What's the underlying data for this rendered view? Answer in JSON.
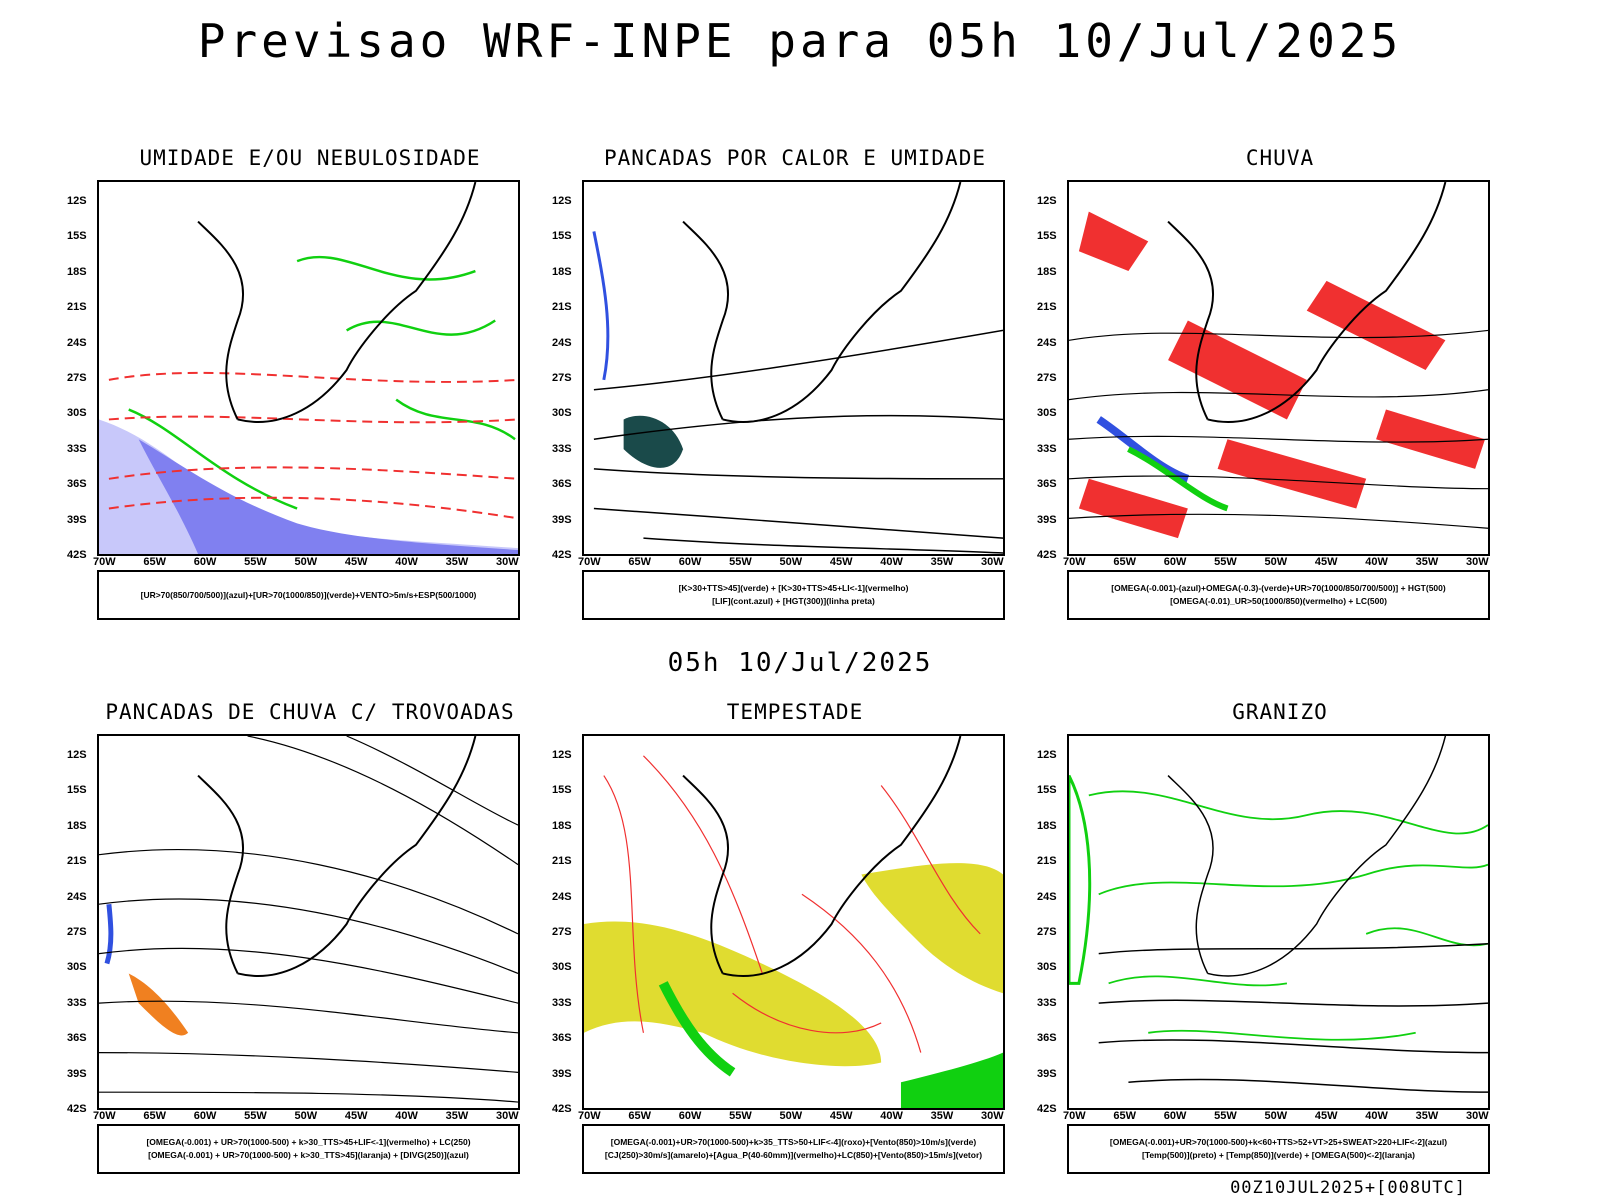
{
  "header": {
    "title": "Previsao WRF-INPE  para 05h 10/Jul/2025",
    "subtitle": "05h 10/Jul/2025",
    "footer": "00Z10JUL2025+[008UTC]"
  },
  "axes": {
    "lat_labels": [
      "12S",
      "15S",
      "18S",
      "21S",
      "24S",
      "27S",
      "30S",
      "33S",
      "36S",
      "39S",
      "42S"
    ],
    "lon_labels": [
      "70W",
      "65W",
      "60W",
      "55W",
      "50W",
      "45W",
      "40W",
      "35W",
      "30W"
    ]
  },
  "colors": {
    "blue": "#3050e0",
    "light_blue": "#a8a8f8",
    "green": "#10d010",
    "red": "#f03030",
    "orange": "#f08020",
    "yellow": "#e0dc30",
    "dark_teal": "#1a4a4a"
  },
  "panels": [
    {
      "id": "umidade",
      "title": "UMIDADE E/OU NEBULOSIDADE",
      "legend": [
        "[UR>70(850/700/500)](azul)+[UR>70(1000/850)](verde)+VENTO>5m/s+ESP(500/1000)"
      ]
    },
    {
      "id": "pancadas-calor",
      "title": "PANCADAS POR CALOR E UMIDADE",
      "legend": [
        "[K>30+TTS>45](verde) + [K>30+TTS>45+LI<-1](vermelho)",
        "[LIF](cont.azul) + [HGT(300)](linha preta)"
      ]
    },
    {
      "id": "chuva",
      "title": "CHUVA",
      "legend": [
        "[OMEGA(-0.001)-(azul)+OMEGA(-0.3)-(verde)+UR>70(1000/850/700/500)] + HGT(500)",
        "[OMEGA(-0.01)_UR>50(1000/850)(vermelho) + LC(500)"
      ]
    },
    {
      "id": "trovoadas",
      "title": "PANCADAS DE CHUVA C/ TROVOADAS",
      "legend": [
        "[OMEGA(-0.001) + UR>70(1000-500) + k>30_TTS>45+LIF<-1](vermelho) + LC(250)",
        "[OMEGA(-0.001) + UR>70(1000-500) + k>30_TTS>45](laranja) + [DIVG(250)](azul)"
      ]
    },
    {
      "id": "tempestade",
      "title": "TEMPESTADE",
      "legend": [
        "[OMEGA(-0.001)+UR>70(1000-500)+k>35_TTS>50+LIF<-4](roxo)+[Vento(850)>10m/s](verde)",
        "[CJ(250)>30m/s](amarelo)+[Agua_P(40-60mm)](vermelho)+LC(850)+[Vento(850)>15m/s](vetor)"
      ]
    },
    {
      "id": "granizo",
      "title": "GRANIZO",
      "legend": [
        "[OMEGA(-0.001)+UR>70(1000-500)+k<60+TTS>52+VT>25+SWEAT>220+LIF<-2](azul)",
        "[Temp(500)](preto) + [Temp(850)](verde) + [OMEGA(500)<-2](laranja)"
      ]
    }
  ]
}
